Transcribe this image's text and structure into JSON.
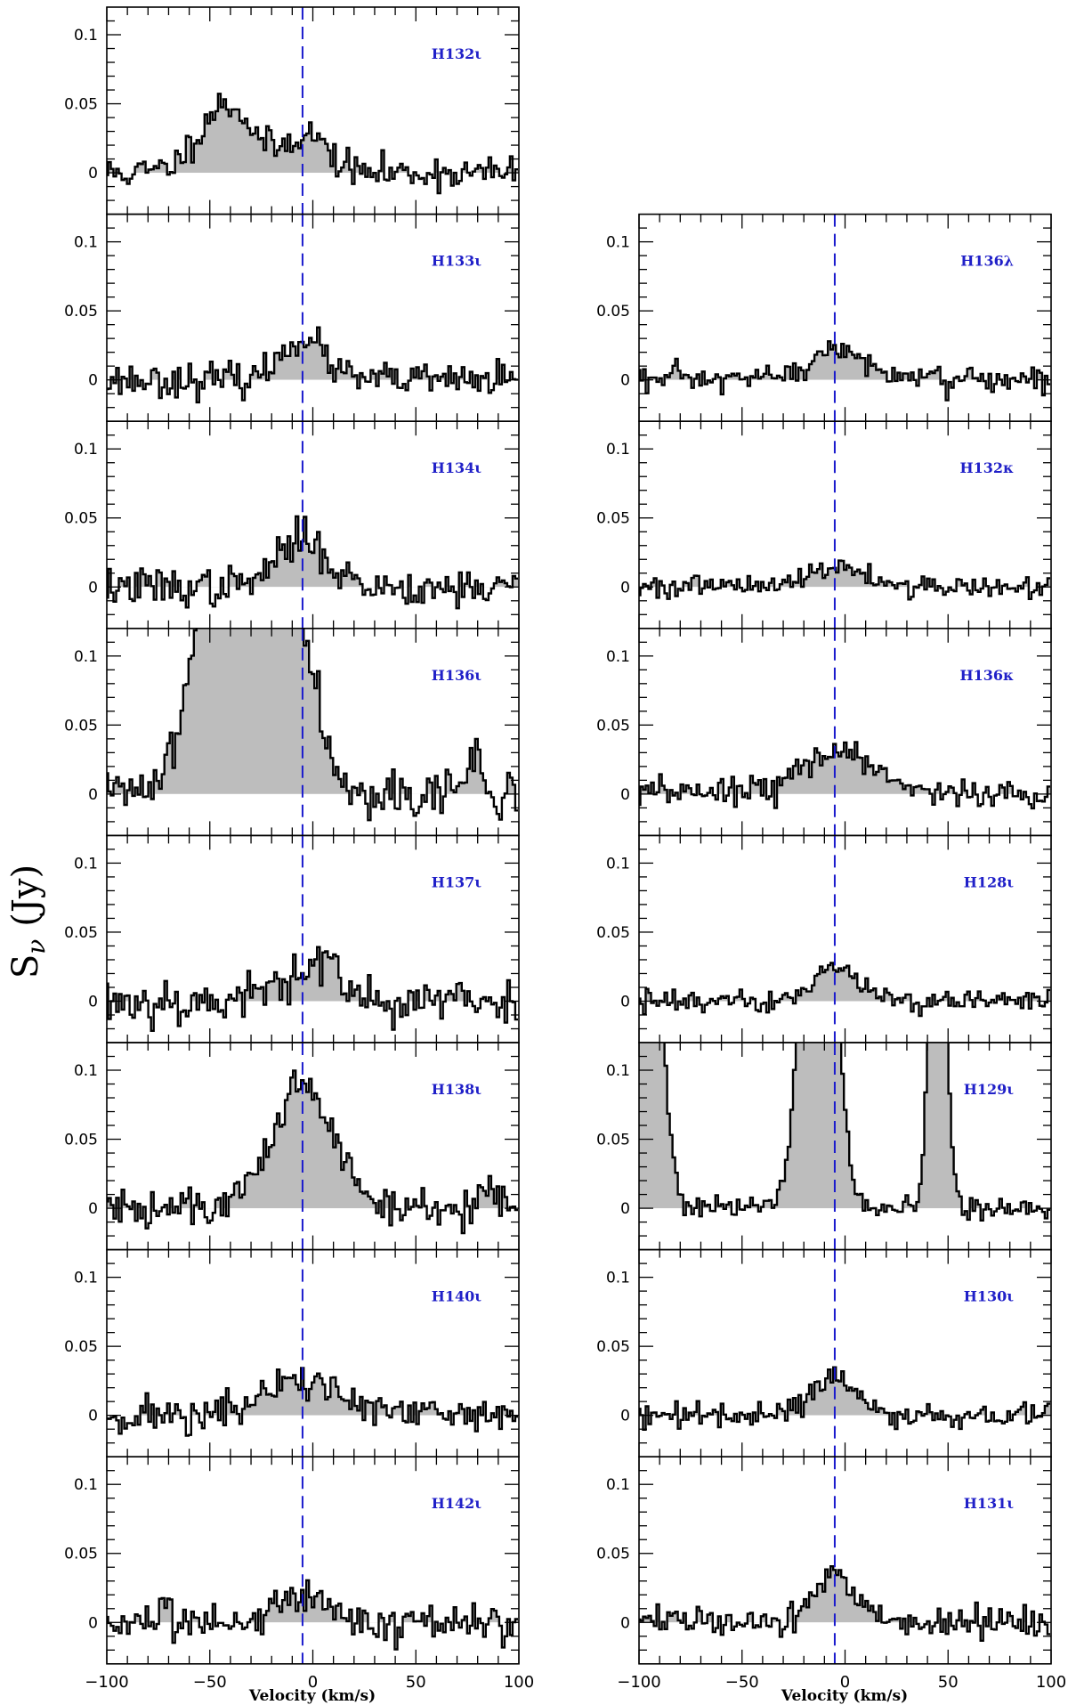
{
  "chart_data": {
    "type": "line",
    "style": "stepped spectra with grey fill, one panel per recombination line",
    "ylabel": "S_ν (Jy)",
    "ylabel_main": "S",
    "ylabel_sub": "ν",
    "ylabel_unit": "(Jy)",
    "xlabel": "Velocity (km/s)",
    "xlim": [
      -100,
      100
    ],
    "ylim": [
      -0.03,
      0.12
    ],
    "yticks": [
      0,
      0.05,
      0.1
    ],
    "ytick_labels": [
      "0",
      "0.05",
      "0.1"
    ],
    "xticks": [
      -100,
      -50,
      0,
      50,
      100
    ],
    "xtick_labels": [
      "−100",
      "−50",
      "0",
      "50",
      "100"
    ],
    "reference_velocity": -5,
    "colors": {
      "line": "#000000",
      "fill": "#bdbdbd",
      "reference_line": "#1a1acd",
      "label": "#2020c8"
    },
    "panels": [
      {
        "label": "H132ι",
        "column": "left",
        "row": 0,
        "rms": 0.006,
        "seed": 11,
        "components": [
          {
            "center": -42,
            "amp": 0.05,
            "sigma": 13
          },
          {
            "center": -3,
            "amp": 0.028,
            "sigma": 10
          }
        ]
      },
      {
        "label": "H133ι",
        "column": "left",
        "row": 1,
        "rms": 0.006,
        "seed": 23,
        "components": [
          {
            "center": -5,
            "amp": 0.031,
            "sigma": 10
          }
        ]
      },
      {
        "label": "H134ι",
        "column": "left",
        "row": 2,
        "rms": 0.007,
        "seed": 37,
        "components": [
          {
            "center": -5,
            "amp": 0.035,
            "sigma": 12
          }
        ]
      },
      {
        "label": "H136ι",
        "column": "left",
        "row": 3,
        "rms": 0.009,
        "seed": 41,
        "clipped": true,
        "components": [
          {
            "center": -30,
            "amp": 0.35,
            "sigma": 18
          },
          {
            "center": 78,
            "amp": 0.03,
            "sigma": 3
          }
        ]
      },
      {
        "label": "H137ι",
        "column": "left",
        "row": 4,
        "rms": 0.009,
        "seed": 53,
        "components": [
          {
            "center": -5,
            "amp": 0.025,
            "sigma": 12
          },
          {
            "center": 7,
            "amp": 0.02,
            "sigma": 3
          }
        ]
      },
      {
        "label": "H138ι",
        "column": "left",
        "row": 5,
        "rms": 0.008,
        "seed": 61,
        "components": [
          {
            "center": -5,
            "amp": 0.088,
            "sigma": 15
          },
          {
            "center": 85,
            "amp": 0.015,
            "sigma": 5
          }
        ]
      },
      {
        "label": "H140ι",
        "column": "left",
        "row": 6,
        "rms": 0.007,
        "seed": 71,
        "components": [
          {
            "center": -5,
            "amp": 0.025,
            "sigma": 18
          }
        ]
      },
      {
        "label": "H142ι",
        "column": "left",
        "row": 7,
        "rms": 0.007,
        "seed": 83,
        "components": [
          {
            "center": -5,
            "amp": 0.022,
            "sigma": 12
          }
        ]
      },
      {
        "label": "H136λ",
        "column": "right",
        "row": 1,
        "rms": 0.005,
        "seed": 97,
        "components": [
          {
            "center": -3,
            "amp": 0.022,
            "sigma": 13
          }
        ]
      },
      {
        "label": "H132κ",
        "column": "right",
        "row": 2,
        "rms": 0.004,
        "seed": 101,
        "components": [
          {
            "center": -5,
            "amp": 0.015,
            "sigma": 14
          }
        ]
      },
      {
        "label": "H136κ",
        "column": "right",
        "row": 3,
        "rms": 0.005,
        "seed": 113,
        "components": [
          {
            "center": -3,
            "amp": 0.032,
            "sigma": 18
          }
        ]
      },
      {
        "label": "H128ι",
        "column": "right",
        "row": 4,
        "rms": 0.004,
        "seed": 127,
        "components": [
          {
            "center": -5,
            "amp": 0.025,
            "sigma": 10
          }
        ]
      },
      {
        "label": "H129ι",
        "column": "right",
        "row": 5,
        "rms": 0.004,
        "seed": 131,
        "clipped": true,
        "components": [
          {
            "center": -104,
            "amp": 1.0,
            "sigma": 8
          },
          {
            "center": -13,
            "amp": 0.4,
            "sigma": 7
          },
          {
            "center": 45,
            "amp": 0.35,
            "sigma": 3.5
          }
        ]
      },
      {
        "label": "H130ι",
        "column": "right",
        "row": 6,
        "rms": 0.004,
        "seed": 139,
        "components": [
          {
            "center": -5,
            "amp": 0.026,
            "sigma": 12
          }
        ]
      },
      {
        "label": "H131ι",
        "column": "right",
        "row": 7,
        "rms": 0.005,
        "seed": 149,
        "components": [
          {
            "center": -5,
            "amp": 0.033,
            "sigma": 10
          }
        ]
      }
    ]
  }
}
